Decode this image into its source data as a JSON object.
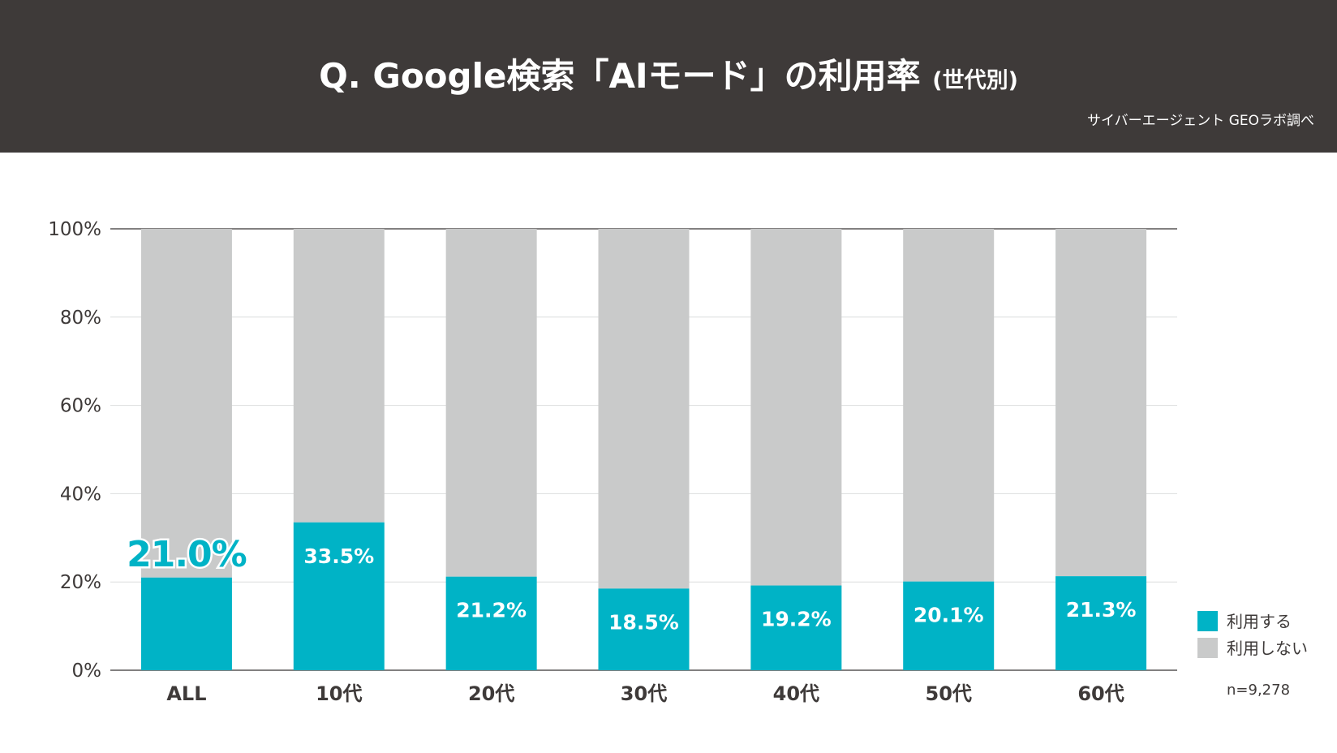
{
  "header": {
    "title_main": "Q. Google検索「AIモード」の利用率",
    "title_sub": "(世代別)",
    "source": "サイバーエージェント GEOラボ調べ"
  },
  "colors": {
    "header_bg": "#3e3a39",
    "use": "#00b3c6",
    "not_use": "#c9caca",
    "highlight_label": "#00b3c6"
  },
  "chart_data": {
    "type": "bar",
    "stacked": true,
    "percent_stacked": true,
    "categories": [
      "ALL",
      "10代",
      "20代",
      "30代",
      "40代",
      "50代",
      "60代"
    ],
    "series": [
      {
        "name": "利用する",
        "values": [
          21.0,
          33.5,
          21.2,
          18.5,
          19.2,
          20.1,
          21.3
        ]
      },
      {
        "name": "利用しない",
        "values": [
          79.0,
          66.5,
          78.8,
          81.5,
          80.8,
          79.9,
          78.7
        ]
      }
    ],
    "data_labels": [
      "21.0%",
      "33.5%",
      "21.2%",
      "18.5%",
      "19.2%",
      "20.1%",
      "21.3%"
    ],
    "ylim": [
      0,
      100
    ],
    "yticks": [
      "0%",
      "20%",
      "40%",
      "60%",
      "80%",
      "100%"
    ],
    "grid": true,
    "legend_position": "bottom-right",
    "note": "n=9,278"
  }
}
